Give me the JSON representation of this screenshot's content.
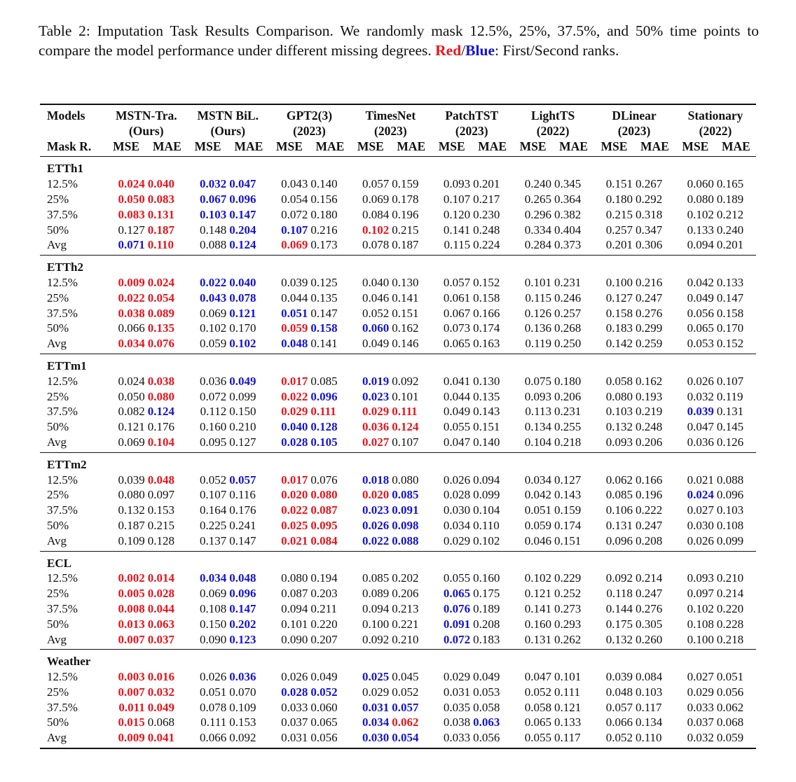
{
  "caption": {
    "text": "Table 2: Imputation Task Results Comparison. We randomly mask 12.5%, 25%, 37.5%, and 50% time points to compare the model performance under different missing degrees.",
    "red": "Red",
    "slash": "/",
    "blue": "Blue",
    "rest": ": First/Second ranks."
  },
  "colors": {
    "first": "#e8141c",
    "second": "#1414d2"
  },
  "header": {
    "models_label": "Models",
    "mask_label": "Mask R.",
    "models": [
      {
        "name": "MSTN-Tra.",
        "sub": "(Ours)"
      },
      {
        "name": "MSTN BiL.",
        "sub": "(Ours)"
      },
      {
        "name": "GPT2(3)",
        "sub": "(2023)"
      },
      {
        "name": "TimesNet",
        "sub": "(2023)"
      },
      {
        "name": "PatchTST",
        "sub": "(2023)"
      },
      {
        "name": "LightTS",
        "sub": "(2022)"
      },
      {
        "name": "DLinear",
        "sub": "(2023)"
      },
      {
        "name": "Stationary",
        "sub": "(2022)"
      }
    ],
    "metrics": [
      "MSE",
      "MAE"
    ]
  },
  "sections": [
    {
      "name": "ETTh1",
      "rows": [
        {
          "label": "12.5%",
          "values": [
            "0.024",
            "0.040",
            "0.032",
            "0.047",
            "0.043",
            "0.140",
            "0.057",
            "0.159",
            "0.093",
            "0.201",
            "0.240",
            "0.345",
            "0.151",
            "0.267",
            "0.060",
            "0.165"
          ],
          "ranks": "1122000000000000"
        },
        {
          "label": "25%",
          "values": [
            "0.050",
            "0.083",
            "0.067",
            "0.096",
            "0.054",
            "0.156",
            "0.069",
            "0.178",
            "0.107",
            "0.217",
            "0.265",
            "0.364",
            "0.180",
            "0.292",
            "0.080",
            "0.189"
          ],
          "ranks": "1122000000000000"
        },
        {
          "label": "37.5%",
          "values": [
            "0.083",
            "0.131",
            "0.103",
            "0.147",
            "0.072",
            "0.180",
            "0.084",
            "0.196",
            "0.120",
            "0.230",
            "0.296",
            "0.382",
            "0.215",
            "0.318",
            "0.102",
            "0.212"
          ],
          "ranks": "1122000000000000"
        },
        {
          "label": "50%",
          "values": [
            "0.127",
            "0.187",
            "0.148",
            "0.204",
            "0.107",
            "0.216",
            "0.102",
            "0.215",
            "0.141",
            "0.248",
            "0.334",
            "0.404",
            "0.257",
            "0.347",
            "0.133",
            "0.240"
          ],
          "ranks": "0102201000000000"
        },
        {
          "label": "Avg",
          "values": [
            "0.071",
            "0.110",
            "0.088",
            "0.124",
            "0.069",
            "0.173",
            "0.078",
            "0.187",
            "0.115",
            "0.224",
            "0.284",
            "0.373",
            "0.201",
            "0.306",
            "0.094",
            "0.201"
          ],
          "ranks": "2102100000000000"
        }
      ]
    },
    {
      "name": "ETTh2",
      "rows": [
        {
          "label": "12.5%",
          "values": [
            "0.009",
            "0.024",
            "0.022",
            "0.040",
            "0.039",
            "0.125",
            "0.040",
            "0.130",
            "0.057",
            "0.152",
            "0.101",
            "0.231",
            "0.100",
            "0.216",
            "0.042",
            "0.133"
          ],
          "ranks": "1122000000000000"
        },
        {
          "label": "25%",
          "values": [
            "0.022",
            "0.054",
            "0.043",
            "0.078",
            "0.044",
            "0.135",
            "0.046",
            "0.141",
            "0.061",
            "0.158",
            "0.115",
            "0.246",
            "0.127",
            "0.247",
            "0.049",
            "0.147"
          ],
          "ranks": "1122000000000000"
        },
        {
          "label": "37.5%",
          "values": [
            "0.038",
            "0.089",
            "0.069",
            "0.121",
            "0.051",
            "0.147",
            "0.052",
            "0.151",
            "0.067",
            "0.166",
            "0.126",
            "0.257",
            "0.158",
            "0.276",
            "0.056",
            "0.158"
          ],
          "ranks": "1102200000000000"
        },
        {
          "label": "50%",
          "values": [
            "0.066",
            "0.135",
            "0.102",
            "0.170",
            "0.059",
            "0.158",
            "0.060",
            "0.162",
            "0.073",
            "0.174",
            "0.136",
            "0.268",
            "0.183",
            "0.299",
            "0.065",
            "0.170"
          ],
          "ranks": "0100122000000000"
        },
        {
          "label": "Avg",
          "values": [
            "0.034",
            "0.076",
            "0.059",
            "0.102",
            "0.048",
            "0.141",
            "0.049",
            "0.146",
            "0.065",
            "0.163",
            "0.119",
            "0.250",
            "0.142",
            "0.259",
            "0.053",
            "0.152"
          ],
          "ranks": "1102200000000000"
        }
      ]
    },
    {
      "name": "ETTm1",
      "rows": [
        {
          "label": "12.5%",
          "values": [
            "0.024",
            "0.038",
            "0.036",
            "0.049",
            "0.017",
            "0.085",
            "0.019",
            "0.092",
            "0.041",
            "0.130",
            "0.075",
            "0.180",
            "0.058",
            "0.162",
            "0.026",
            "0.107"
          ],
          "ranks": "0102102000000000"
        },
        {
          "label": "25%",
          "values": [
            "0.050",
            "0.080",
            "0.072",
            "0.099",
            "0.022",
            "0.096",
            "0.023",
            "0.101",
            "0.044",
            "0.135",
            "0.093",
            "0.206",
            "0.080",
            "0.193",
            "0.032",
            "0.119"
          ],
          "ranks": "0100122000000000"
        },
        {
          "label": "37.5%",
          "values": [
            "0.082",
            "0.124",
            "0.112",
            "0.150",
            "0.029",
            "0.111",
            "0.029",
            "0.111",
            "0.049",
            "0.143",
            "0.113",
            "0.231",
            "0.103",
            "0.219",
            "0.039",
            "0.131"
          ],
          "ranks": "0200111100000020"
        },
        {
          "label": "50%",
          "values": [
            "0.121",
            "0.176",
            "0.160",
            "0.210",
            "0.040",
            "0.128",
            "0.036",
            "0.124",
            "0.055",
            "0.151",
            "0.134",
            "0.255",
            "0.132",
            "0.248",
            "0.047",
            "0.145"
          ],
          "ranks": "0000221100000000"
        },
        {
          "label": "Avg",
          "values": [
            "0.069",
            "0.104",
            "0.095",
            "0.127",
            "0.028",
            "0.105",
            "0.027",
            "0.107",
            "0.047",
            "0.140",
            "0.104",
            "0.218",
            "0.093",
            "0.206",
            "0.036",
            "0.126"
          ],
          "ranks": "0100221000000000"
        }
      ]
    },
    {
      "name": "ETTm2",
      "rows": [
        {
          "label": "12.5%",
          "values": [
            "0.039",
            "0.048",
            "0.052",
            "0.057",
            "0.017",
            "0.076",
            "0.018",
            "0.080",
            "0.026",
            "0.094",
            "0.034",
            "0.127",
            "0.062",
            "0.166",
            "0.021",
            "0.088"
          ],
          "ranks": "0102102000000000"
        },
        {
          "label": "25%",
          "values": [
            "0.080",
            "0.097",
            "0.107",
            "0.116",
            "0.020",
            "0.080",
            "0.020",
            "0.085",
            "0.028",
            "0.099",
            "0.042",
            "0.143",
            "0.085",
            "0.196",
            "0.024",
            "0.096"
          ],
          "ranks": "0000111200000020"
        },
        {
          "label": "37.5%",
          "values": [
            "0.132",
            "0.153",
            "0.164",
            "0.176",
            "0.022",
            "0.087",
            "0.023",
            "0.091",
            "0.030",
            "0.104",
            "0.051",
            "0.159",
            "0.106",
            "0.222",
            "0.027",
            "0.103"
          ],
          "ranks": "0000112200000000"
        },
        {
          "label": "50%",
          "values": [
            "0.187",
            "0.215",
            "0.225",
            "0.241",
            "0.025",
            "0.095",
            "0.026",
            "0.098",
            "0.034",
            "0.110",
            "0.059",
            "0.174",
            "0.131",
            "0.247",
            "0.030",
            "0.108"
          ],
          "ranks": "0000112200000000"
        },
        {
          "label": "Avg",
          "values": [
            "0.109",
            "0.128",
            "0.137",
            "0.147",
            "0.021",
            "0.084",
            "0.022",
            "0.088",
            "0.029",
            "0.102",
            "0.046",
            "0.151",
            "0.096",
            "0.208",
            "0.026",
            "0.099"
          ],
          "ranks": "0000112200000000"
        }
      ]
    },
    {
      "name": "ECL",
      "rows": [
        {
          "label": "12.5%",
          "values": [
            "0.002",
            "0.014",
            "0.034",
            "0.048",
            "0.080",
            "0.194",
            "0.085",
            "0.202",
            "0.055",
            "0.160",
            "0.102",
            "0.229",
            "0.092",
            "0.214",
            "0.093",
            "0.210"
          ],
          "ranks": "1122000000000000"
        },
        {
          "label": "25%",
          "values": [
            "0.005",
            "0.028",
            "0.069",
            "0.096",
            "0.087",
            "0.203",
            "0.089",
            "0.206",
            "0.065",
            "0.175",
            "0.121",
            "0.252",
            "0.118",
            "0.247",
            "0.097",
            "0.214"
          ],
          "ranks": "1102000020000000"
        },
        {
          "label": "37.5%",
          "values": [
            "0.008",
            "0.044",
            "0.108",
            "0.147",
            "0.094",
            "0.211",
            "0.094",
            "0.213",
            "0.076",
            "0.189",
            "0.141",
            "0.273",
            "0.144",
            "0.276",
            "0.102",
            "0.220"
          ],
          "ranks": "1102000020000000"
        },
        {
          "label": "50%",
          "values": [
            "0.013",
            "0.063",
            "0.150",
            "0.202",
            "0.101",
            "0.220",
            "0.100",
            "0.221",
            "0.091",
            "0.208",
            "0.160",
            "0.293",
            "0.175",
            "0.305",
            "0.108",
            "0.228"
          ],
          "ranks": "1102000020000000"
        },
        {
          "label": "Avg",
          "values": [
            "0.007",
            "0.037",
            "0.090",
            "0.123",
            "0.090",
            "0.207",
            "0.092",
            "0.210",
            "0.072",
            "0.183",
            "0.131",
            "0.262",
            "0.132",
            "0.260",
            "0.100",
            "0.218"
          ],
          "ranks": "1102000020000000"
        }
      ]
    },
    {
      "name": "Weather",
      "rows": [
        {
          "label": "12.5%",
          "values": [
            "0.003",
            "0.016",
            "0.026",
            "0.036",
            "0.026",
            "0.049",
            "0.025",
            "0.045",
            "0.029",
            "0.049",
            "0.047",
            "0.101",
            "0.039",
            "0.084",
            "0.027",
            "0.051"
          ],
          "ranks": "1102002000000000"
        },
        {
          "label": "25%",
          "values": [
            "0.007",
            "0.032",
            "0.051",
            "0.070",
            "0.028",
            "0.052",
            "0.029",
            "0.052",
            "0.031",
            "0.053",
            "0.052",
            "0.111",
            "0.048",
            "0.103",
            "0.029",
            "0.056"
          ],
          "ranks": "1100220000000000"
        },
        {
          "label": "37.5%",
          "values": [
            "0.011",
            "0.049",
            "0.078",
            "0.109",
            "0.033",
            "0.060",
            "0.031",
            "0.057",
            "0.035",
            "0.058",
            "0.058",
            "0.121",
            "0.057",
            "0.117",
            "0.033",
            "0.062"
          ],
          "ranks": "1100002200000000"
        },
        {
          "label": "50%",
          "values": [
            "0.015",
            "0.068",
            "0.111",
            "0.153",
            "0.037",
            "0.065",
            "0.034",
            "0.062",
            "0.038",
            "0.063",
            "0.065",
            "0.133",
            "0.066",
            "0.134",
            "0.037",
            "0.068"
          ],
          "ranks": "1000002102000000"
        },
        {
          "label": "Avg",
          "values": [
            "0.009",
            "0.041",
            "0.066",
            "0.092",
            "0.031",
            "0.056",
            "0.030",
            "0.054",
            "0.033",
            "0.056",
            "0.055",
            "0.117",
            "0.052",
            "0.110",
            "0.032",
            "0.059"
          ],
          "ranks": "1100002200000000"
        }
      ]
    }
  ]
}
